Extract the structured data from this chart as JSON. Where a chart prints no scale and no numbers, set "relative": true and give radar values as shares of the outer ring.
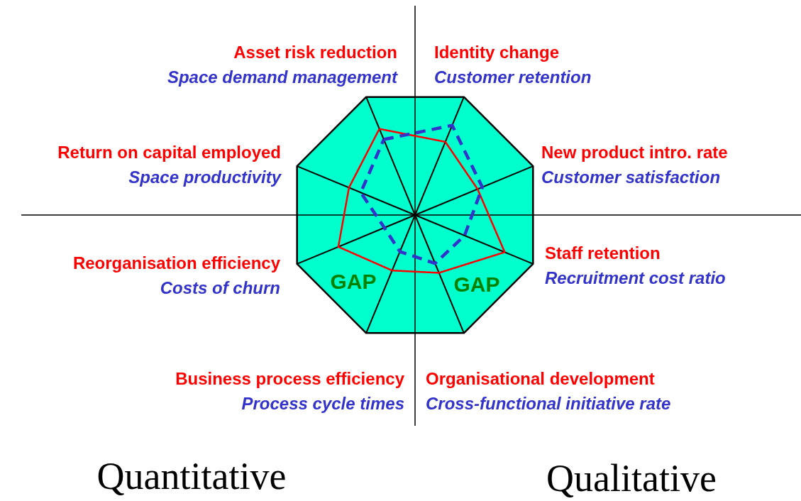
{
  "chart_data": {
    "type": "radar",
    "relative": true,
    "grid": true,
    "categories": [
      "Asset risk reduction\nSpace demand management",
      "Identity change\nCustomer retention",
      "New product intro. rate\nCustomer satisfaction",
      "Staff retention\nRecruitment cost ratio",
      "Organisational development\nCross-functional initiative rate",
      "Business process efficiency\nProcess cycle times",
      "Reorganisation efficiency\nCosts of churn",
      "Return on capital employed\nSpace productivity"
    ],
    "series": [
      {
        "color": "#ff0000",
        "line_style": "solid",
        "values": [
          0.73,
          0.62,
          0.53,
          0.76,
          0.49,
          0.47,
          0.65,
          0.56
        ]
      },
      {
        "color": "#3333cc",
        "line_style": "dashed",
        "values": [
          0.64,
          0.76,
          0.57,
          0.42,
          0.41,
          0.31,
          0.26,
          0.46
        ]
      }
    ],
    "annotations": [
      "GAP",
      "GAP",
      "Quantitative",
      "Qualitative"
    ]
  }
}
